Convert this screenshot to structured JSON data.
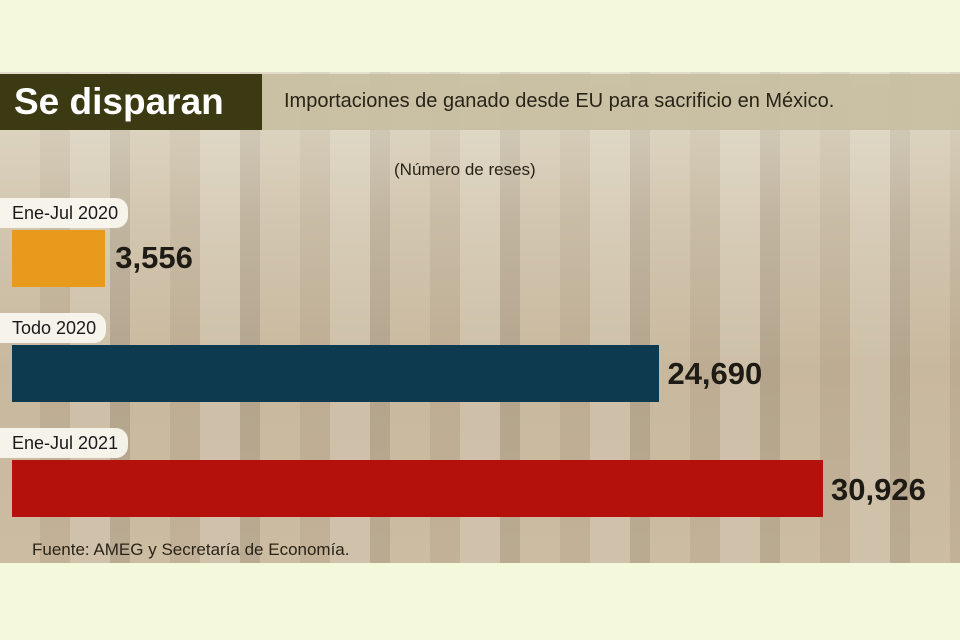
{
  "title": "Se disparan",
  "chart_data": {
    "type": "bar",
    "orientation": "horizontal",
    "title": "Se disparan",
    "subtitle": "Importaciones de ganado desde EU para sacrificio en México.",
    "unit_label": "(Número de reses)",
    "categories": [
      "Ene-Jul 2020",
      "Todo 2020",
      "Ene-Jul 2021"
    ],
    "values": [
      3556,
      24690,
      30926
    ],
    "value_labels": [
      "3,556",
      "24,690",
      "30,926"
    ],
    "colors": [
      "#e89a1c",
      "#0d3a4e",
      "#b5110c"
    ],
    "source": "Fuente: AMEG y Secretaría de Economía."
  }
}
